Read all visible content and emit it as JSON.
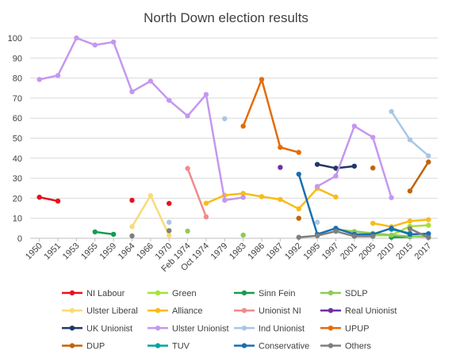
{
  "chart_data": {
    "type": "line",
    "title": "North Down election results",
    "xlabel": "",
    "ylabel": "",
    "ylim": [
      0,
      100
    ],
    "yticks": [
      0,
      10,
      20,
      30,
      40,
      50,
      60,
      70,
      80,
      90,
      100
    ],
    "grid": true,
    "legend_position": "bottom",
    "categories": [
      "1950",
      "1951",
      "1953",
      "1955",
      "1959",
      "1964",
      "1966",
      "1970",
      "Feb 1974",
      "Oct 1974",
      "1979",
      "1983",
      "1986",
      "1987",
      "1992",
      "1995",
      "1997",
      "2001",
      "2005",
      "2010",
      "2015",
      "2017"
    ],
    "series": [
      {
        "name": "NI Labour",
        "color": "#e8111b",
        "values": [
          20.5,
          18.6,
          null,
          null,
          null,
          19.0,
          null,
          17.4,
          null,
          null,
          null,
          null,
          null,
          null,
          null,
          null,
          null,
          null,
          null,
          null,
          null,
          null
        ]
      },
      {
        "name": "Green",
        "color": "#a5e235",
        "values": [
          null,
          null,
          null,
          null,
          null,
          null,
          null,
          null,
          null,
          null,
          null,
          null,
          null,
          null,
          null,
          null,
          null,
          null,
          1.5,
          1.5,
          6.0,
          6.5
        ]
      },
      {
        "name": "Sinn Fein",
        "color": "#149c52",
        "values": [
          null,
          null,
          null,
          3.2,
          2.0,
          null,
          null,
          null,
          null,
          null,
          null,
          null,
          null,
          null,
          null,
          null,
          null,
          null,
          null,
          0.5,
          0.8,
          null
        ]
      },
      {
        "name": "SDLP",
        "color": "#8fca57",
        "values": [
          null,
          null,
          null,
          null,
          null,
          null,
          null,
          null,
          3.6,
          null,
          null,
          1.6,
          null,
          null,
          null,
          null,
          4.4,
          3.4,
          2.5,
          1.6,
          1.0,
          0.8
        ]
      },
      {
        "name": "Ulster Liberal",
        "color": "#f8dc76",
        "values": [
          null,
          null,
          null,
          null,
          null,
          5.8,
          21.3,
          1.5,
          null,
          null,
          null,
          null,
          null,
          null,
          null,
          null,
          null,
          null,
          null,
          null,
          null,
          null
        ]
      },
      {
        "name": "Alliance",
        "color": "#f8bb19",
        "values": [
          null,
          null,
          null,
          null,
          null,
          null,
          null,
          null,
          null,
          17.5,
          21.5,
          22.4,
          20.8,
          19.4,
          14.7,
          24.9,
          20.6,
          null,
          7.5,
          5.8,
          8.6,
          9.3
        ]
      },
      {
        "name": "Unionist NI",
        "color": "#f08b8b",
        "values": [
          null,
          null,
          null,
          null,
          null,
          null,
          null,
          null,
          34.9,
          10.7,
          null,
          null,
          null,
          null,
          null,
          null,
          null,
          null,
          null,
          null,
          null,
          null
        ]
      },
      {
        "name": "Real Unionist",
        "color": "#7030a0",
        "values": [
          null,
          null,
          null,
          null,
          null,
          null,
          null,
          null,
          null,
          null,
          null,
          null,
          null,
          35.4,
          null,
          null,
          null,
          null,
          null,
          null,
          null,
          null
        ]
      },
      {
        "name": "UK Unionist",
        "color": "#1f3864",
        "values": [
          null,
          null,
          null,
          null,
          null,
          null,
          null,
          null,
          null,
          null,
          null,
          null,
          null,
          null,
          null,
          36.9,
          35.0,
          36.0,
          null,
          null,
          null,
          null
        ]
      },
      {
        "name": "Ulster Unionist",
        "color": "#c597f0",
        "values": [
          79.3,
          81.3,
          100,
          96.5,
          98.0,
          73.2,
          78.5,
          68.9,
          61.1,
          71.8,
          19.0,
          20.4,
          null,
          null,
          null,
          25.9,
          31.1,
          56.0,
          50.4,
          20.3,
          null,
          null
        ]
      },
      {
        "name": "Ind Unionist",
        "color": "#a8c7e6",
        "values": [
          null,
          null,
          null,
          null,
          null,
          null,
          null,
          8.0,
          null,
          null,
          59.7,
          null,
          null,
          null,
          null,
          8.0,
          null,
          null,
          null,
          63.3,
          49.2,
          41.2
        ]
      },
      {
        "name": "UPUP",
        "color": "#e36c09",
        "values": [
          null,
          null,
          null,
          null,
          null,
          null,
          null,
          null,
          null,
          null,
          null,
          56.0,
          79.3,
          45.4,
          42.9,
          null,
          null,
          null,
          null,
          null,
          null,
          null
        ]
      },
      {
        "name": "DUP",
        "color": "#c0650a",
        "values": [
          null,
          null,
          null,
          null,
          null,
          null,
          null,
          null,
          null,
          null,
          null,
          null,
          null,
          null,
          10.0,
          null,
          null,
          null,
          35.1,
          null,
          23.6,
          38.1
        ]
      },
      {
        "name": "TUV",
        "color": "#00a3a3",
        "values": [
          null,
          null,
          null,
          null,
          null,
          null,
          null,
          null,
          null,
          null,
          null,
          null,
          null,
          null,
          null,
          null,
          null,
          null,
          null,
          4.5,
          2.5,
          null
        ]
      },
      {
        "name": "Conservative",
        "color": "#1a6faf",
        "values": [
          null,
          null,
          null,
          null,
          null,
          null,
          null,
          null,
          null,
          null,
          null,
          null,
          null,
          null,
          32.0,
          2.0,
          5.0,
          2.0,
          2.0,
          5.0,
          2.0,
          2.3
        ]
      },
      {
        "name": "Others",
        "color": "#7f7f7f",
        "values": [
          null,
          null,
          null,
          null,
          null,
          1.2,
          null,
          3.8,
          null,
          null,
          null,
          null,
          null,
          null,
          0.5,
          1.3,
          3.5,
          1.0,
          1.0,
          null,
          4.8,
          0.4
        ]
      }
    ]
  }
}
